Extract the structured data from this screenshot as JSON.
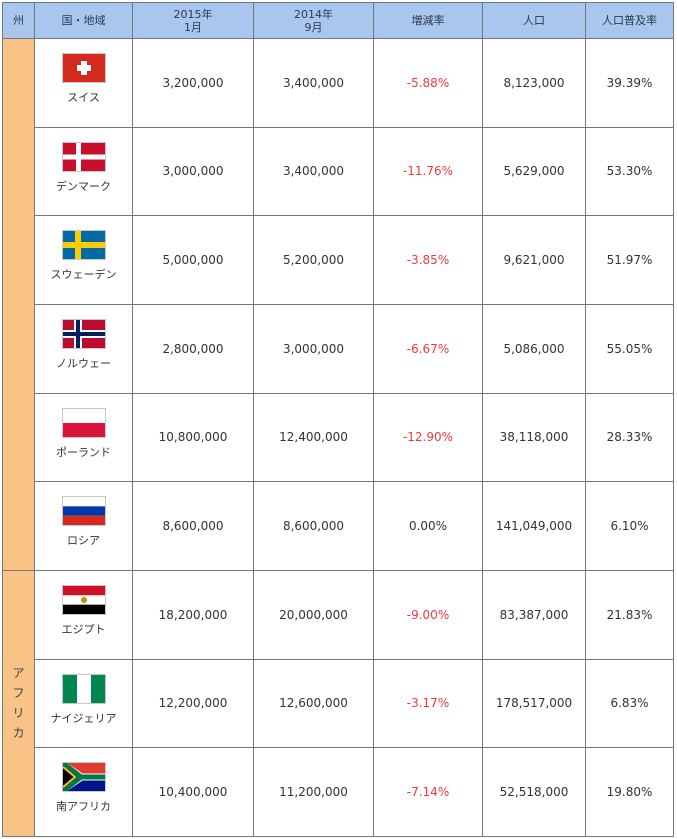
{
  "headers": {
    "region": "州",
    "country": "国・地域",
    "col2015_line1": "2015年",
    "col2015_line2": "1月",
    "col2014_line1": "2014年",
    "col2014_line2": "9月",
    "change": "増減率",
    "population": "人口",
    "penetration": "人口普及率"
  },
  "regions": {
    "europe": "",
    "africa": [
      "ア",
      "フ",
      "リ",
      "カ"
    ]
  },
  "rows": [
    {
      "flag_icon": "switzerland-flag-icon",
      "country": "スイス",
      "y2015": "3,200,000",
      "y2014": "3,400,000",
      "change": "-5.88%",
      "population": "8,123,000",
      "penetration": "39.39%"
    },
    {
      "flag_icon": "denmark-flag-icon",
      "country": "デンマーク",
      "y2015": "3,000,000",
      "y2014": "3,400,000",
      "change": "-11.76%",
      "population": "5,629,000",
      "penetration": "53.30%"
    },
    {
      "flag_icon": "sweden-flag-icon",
      "country": "スウェーデン",
      "y2015": "5,000,000",
      "y2014": "5,200,000",
      "change": "-3.85%",
      "population": "9,621,000",
      "penetration": "51.97%"
    },
    {
      "flag_icon": "norway-flag-icon",
      "country": "ノルウェー",
      "y2015": "2,800,000",
      "y2014": "3,000,000",
      "change": "-6.67%",
      "population": "5,086,000",
      "penetration": "55.05%"
    },
    {
      "flag_icon": "poland-flag-icon",
      "country": "ポーランド",
      "y2015": "10,800,000",
      "y2014": "12,400,000",
      "change": "-12.90%",
      "population": "38,118,000",
      "penetration": "28.33%"
    },
    {
      "flag_icon": "russia-flag-icon",
      "country": "ロシア",
      "y2015": "8,600,000",
      "y2014": "8,600,000",
      "change": "0.00%",
      "population": "141,049,000",
      "penetration": "6.10%"
    },
    {
      "flag_icon": "egypt-flag-icon",
      "country": "エジプト",
      "y2015": "18,200,000",
      "y2014": "20,000,000",
      "change": "-9.00%",
      "population": "83,387,000",
      "penetration": "21.83%"
    },
    {
      "flag_icon": "nigeria-flag-icon",
      "country": "ナイジェリア",
      "y2015": "12,200,000",
      "y2014": "12,600,000",
      "change": "-3.17%",
      "population": "178,517,000",
      "penetration": "6.83%"
    },
    {
      "flag_icon": "south-africa-flag-icon",
      "country": "南アフリカ",
      "y2015": "10,400,000",
      "y2014": "11,200,000",
      "change": "-7.14%",
      "population": "52,518,000",
      "penetration": "19.80%"
    }
  ],
  "colors": {
    "header_bg": "#a9c6ee",
    "region_bg": "#f9c287",
    "negative_text": "#ef3b3b"
  }
}
